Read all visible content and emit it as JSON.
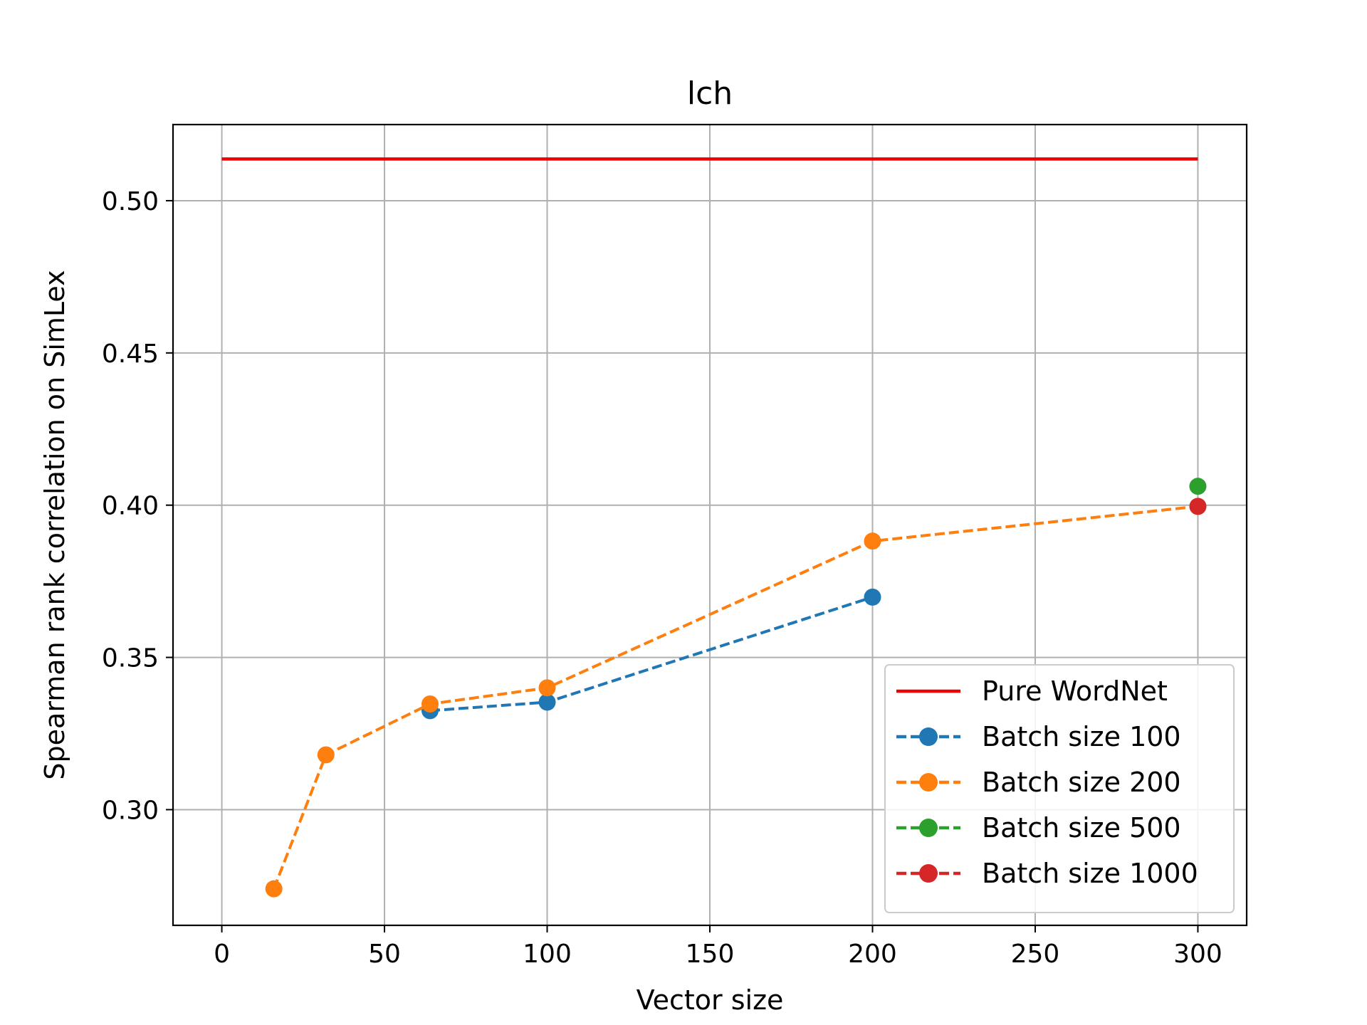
{
  "chart_data": {
    "type": "line",
    "title": "lch",
    "xlabel": "Vector size",
    "ylabel": "Spearman rank correlation on SimLex",
    "xlim": [
      -15,
      315
    ],
    "ylim": [
      0.262,
      0.525
    ],
    "xticks": [
      0,
      50,
      100,
      150,
      200,
      250,
      300
    ],
    "xtick_labels": [
      "0",
      "50",
      "100",
      "150",
      "200",
      "250",
      "300"
    ],
    "yticks": [
      0.3,
      0.35,
      0.4,
      0.45,
      0.5
    ],
    "ytick_labels": [
      "0.30",
      "0.35",
      "0.40",
      "0.45",
      "0.50"
    ],
    "grid": true,
    "legend_position": "lower-right",
    "series": [
      {
        "name": "Pure WordNet",
        "color": "#ee0000",
        "style": "solid",
        "marker": false,
        "x": [
          0,
          300
        ],
        "y": [
          0.5137,
          0.5137
        ]
      },
      {
        "name": "Batch size 100",
        "color": "#1f77b4",
        "style": "dashed",
        "marker": true,
        "x": [
          64,
          100,
          200
        ],
        "y": [
          0.3325,
          0.3353,
          0.3698
        ]
      },
      {
        "name": "Batch size 200",
        "color": "#ff7f0e",
        "style": "dashed",
        "marker": true,
        "x": [
          16,
          32,
          64,
          100,
          200,
          300
        ],
        "y": [
          0.274,
          0.318,
          0.3347,
          0.34,
          0.3882,
          0.3996
        ]
      },
      {
        "name": "Batch size 500",
        "color": "#2ca02c",
        "style": "dashed",
        "marker": true,
        "x": [
          300
        ],
        "y": [
          0.4062
        ]
      },
      {
        "name": "Batch size 1000",
        "color": "#d62728",
        "style": "dashed",
        "marker": true,
        "x": [
          300
        ],
        "y": [
          0.3996
        ]
      }
    ]
  }
}
